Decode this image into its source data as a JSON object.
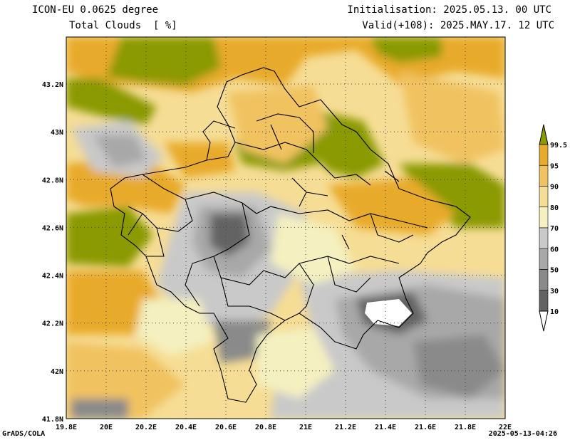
{
  "header": {
    "line1_left": "ICON-EU 0.0625 degree",
    "line2_left": "Total Clouds  [ %]",
    "line1_right": "Initialisation: 2025.05.13. 00 UTC",
    "line2_right": "Valid(+108): 2025.MAY.17. 12 UTC"
  },
  "footer": {
    "left": "GrADS/COLA",
    "right": "2025-05-13-04:26"
  },
  "axes": {
    "x_ticks": [
      "19.8E",
      "20E",
      "20.2E",
      "20.4E",
      "20.6E",
      "20.8E",
      "21E",
      "21.2E",
      "21.4E",
      "21.6E",
      "21.8E",
      "22E"
    ],
    "y_ticks": [
      "43.2N",
      "43N",
      "42.8N",
      "42.6N",
      "42.4N",
      "42.2N",
      "42N",
      "41.8N"
    ]
  },
  "colorbar": {
    "labels": [
      "99.5",
      "95",
      "90",
      "80",
      "70",
      "60",
      "50",
      "30",
      "10"
    ],
    "colors": {
      "over": "#8a9a00",
      "c95": "#e8aa2a",
      "c90": "#f1c260",
      "c80": "#f6dd95",
      "c70": "#f4f0c0",
      "c60": "#c9c9c9",
      "c50": "#a8a8a8",
      "c30": "#8a8a8a",
      "c10": "#636363",
      "under": "#ffffff"
    }
  }
}
